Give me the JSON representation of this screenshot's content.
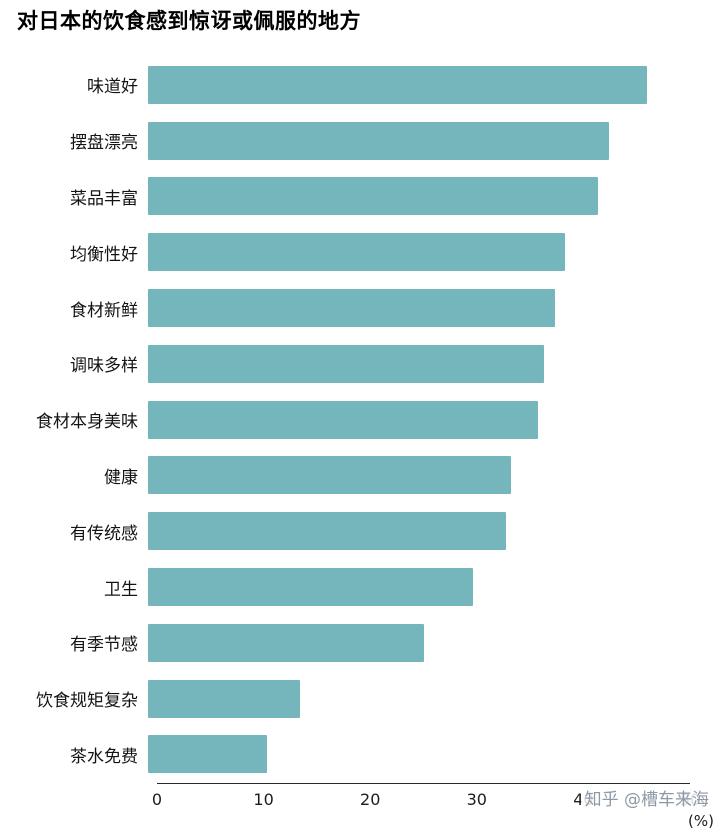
{
  "title": "对日本的饮食感到惊讶或佩服的地方",
  "watermark": "知乎 @槽车来海",
  "chart_data": {
    "type": "bar",
    "orientation": "horizontal",
    "title": "对日本的饮食感到惊讶或佩服的地方",
    "categories": [
      "味道好",
      "摆盘漂亮",
      "菜品丰富",
      "均衡性好",
      "食材新鲜",
      "调味多样",
      "食材本身美味",
      "健康",
      "有传统感",
      "卫生",
      "有季节感",
      "饮食规矩复杂",
      "茶水免费"
    ],
    "values": [
      46,
      42.5,
      41.5,
      38.5,
      37.5,
      36.5,
      36,
      33.5,
      33,
      30,
      25.5,
      14,
      11
    ],
    "xlabel": "(%)",
    "ylabel": "",
    "xlim": [
      0,
      50
    ],
    "xticks": [
      0,
      10,
      20,
      30,
      40,
      50
    ],
    "grid": false,
    "legend": false,
    "bar_color": "#74b6bb"
  }
}
